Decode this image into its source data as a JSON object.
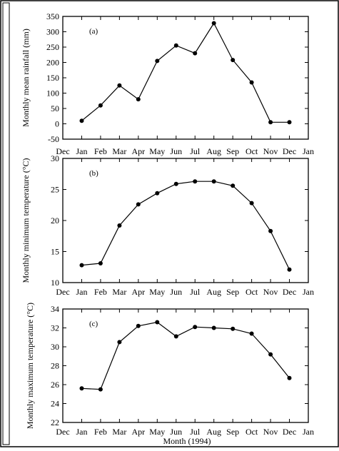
{
  "chart_data": [
    {
      "type": "line",
      "panel_label": "(a)",
      "ylabel": "Monthly mean rainfall (mm)",
      "xlabel": "",
      "x_ticks": [
        "Dec",
        "Jan",
        "Feb",
        "Mar",
        "Apr",
        "May",
        "Jun",
        "Jul",
        "Aug",
        "Sep",
        "Oct",
        "Nov",
        "Dec",
        "Jan"
      ],
      "y_ticks": [
        -50,
        0,
        50,
        100,
        150,
        200,
        250,
        300,
        350
      ],
      "ylim": [
        -50,
        350
      ],
      "xlim": [
        0,
        13
      ],
      "categories": [
        "Jan",
        "Feb",
        "Mar",
        "Apr",
        "May",
        "Jun",
        "Jul",
        "Aug",
        "Sep",
        "Oct",
        "Nov",
        "Dec"
      ],
      "series": [
        {
          "values": [
            10,
            60,
            125,
            80,
            205,
            255,
            230,
            328,
            208,
            135,
            5,
            5
          ]
        }
      ],
      "grid": false,
      "color": "#000000"
    },
    {
      "type": "line",
      "panel_label": "(b)",
      "ylabel": "Monthly minimum temperature (°C)",
      "xlabel": "",
      "x_ticks": [
        "Dec",
        "Jan",
        "Feb",
        "Mar",
        "Apr",
        "May",
        "Jun",
        "Jul",
        "Aug",
        "Sep",
        "Oct",
        "Nov",
        "Dec",
        "Jan"
      ],
      "y_ticks": [
        10,
        15,
        20,
        25,
        30
      ],
      "ylim": [
        10,
        30
      ],
      "xlim": [
        0,
        13
      ],
      "categories": [
        "Jan",
        "Feb",
        "Mar",
        "Apr",
        "May",
        "Jun",
        "Jul",
        "Aug",
        "Sep",
        "Oct",
        "Nov",
        "Dec"
      ],
      "series": [
        {
          "values": [
            12.8,
            13.1,
            19.2,
            22.6,
            24.4,
            25.9,
            26.3,
            26.3,
            25.6,
            22.8,
            18.3,
            12.1
          ]
        }
      ],
      "grid": false,
      "color": "#000000"
    },
    {
      "type": "line",
      "panel_label": "(c)",
      "ylabel": "Monthly maximum temperature (°C)",
      "xlabel": "Month (1994)",
      "x_ticks": [
        "Dec",
        "Jan",
        "Feb",
        "Mar",
        "Apr",
        "May",
        "Jun",
        "Jul",
        "Aug",
        "Sep",
        "Oct",
        "Nov",
        "Dec",
        "Jan"
      ],
      "y_ticks": [
        22,
        24,
        26,
        28,
        30,
        32,
        34
      ],
      "ylim": [
        22,
        34
      ],
      "xlim": [
        0,
        13
      ],
      "categories": [
        "Jan",
        "Feb",
        "Mar",
        "Apr",
        "May",
        "Jun",
        "Jul",
        "Aug",
        "Sep",
        "Oct",
        "Nov",
        "Dec"
      ],
      "series": [
        {
          "values": [
            25.6,
            25.5,
            30.5,
            32.2,
            32.6,
            31.1,
            32.1,
            32.0,
            31.9,
            31.4,
            29.2,
            26.7
          ]
        }
      ],
      "grid": false,
      "color": "#000000"
    }
  ]
}
